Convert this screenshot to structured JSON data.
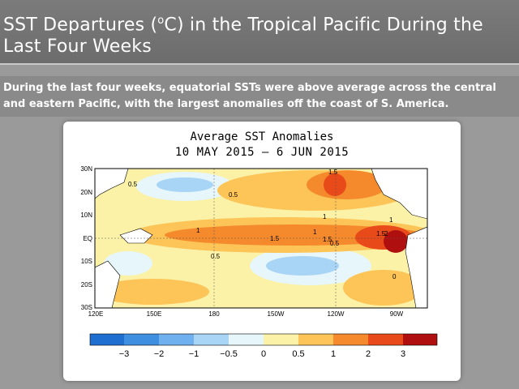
{
  "slide": {
    "title": "SST Departures (",
    "title_sup": "o",
    "title_rest": "C) in the Tropical Pacific During the Last Four Weeks",
    "summary": "During the last four weeks, equatorial SSTs were above average across the central and eastern Pacific, with the largest anomalies off the coast of S. America."
  },
  "map": {
    "title": "Average SST Anomalies",
    "date_range": "10 MAY 2015 — 6 JUN 2015",
    "lat_labels": [
      "30N",
      "20N",
      "10N",
      "EQ",
      "10S",
      "20S",
      "30S"
    ],
    "lon_labels": [
      "120E",
      "150E",
      "180",
      "150W",
      "120W",
      "90W"
    ],
    "contour_labels": [
      "0.5",
      "1.5",
      "0.5",
      "1",
      "1",
      "1",
      "1.5",
      "1",
      "1.5",
      "0.5",
      "1.5",
      "2",
      "0.5",
      "0"
    ]
  },
  "colorbar": {
    "labels": [
      "−3",
      "−2",
      "−1",
      "−0.5",
      "0",
      "0.5",
      "1",
      "2",
      "3"
    ],
    "colors": [
      "#1f6fd0",
      "#3f8fe0",
      "#6fb0ee",
      "#a8d4f6",
      "#e6f6fa",
      "#fbf2a8",
      "#fdc458",
      "#f58a2c",
      "#e84a1a",
      "#b00f0f"
    ]
  }
}
